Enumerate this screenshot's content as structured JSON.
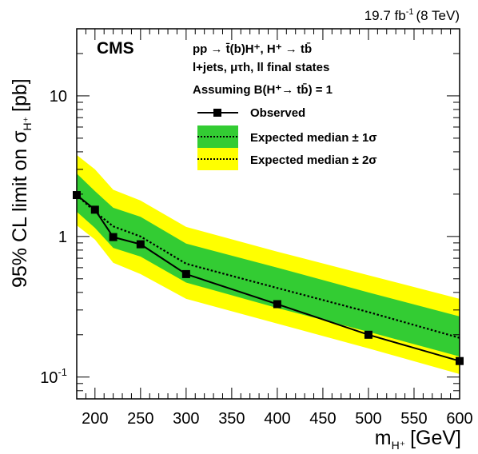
{
  "chart_data": {
    "type": "line",
    "title": "",
    "lumi_label": "19.7 fb",
    "lumi_exp": "-1",
    "lumi_energy": "(8 TeV)",
    "experiment": "CMS",
    "process_text": "pp → t̄(b)H⁺, H⁺ → tb̄",
    "final_states_text": "l+jets, μτh, ll final states",
    "assumption_text": "Assuming B(H⁺→ tb̄) = 1",
    "xlabel": "m",
    "xlabel_sub": "H⁺",
    "xlabel_unit": "[GeV]",
    "ylabel": "95% CL limit on σ",
    "ylabel_sub": "H⁺",
    "ylabel_unit": "[pb]",
    "xlim": [
      180,
      600
    ],
    "ylim": [
      0.07,
      30
    ],
    "yscale": "log",
    "x_ticks": [
      200,
      250,
      300,
      350,
      400,
      450,
      500,
      550,
      600
    ],
    "x_tick_labels": [
      "200",
      "250",
      "300",
      "350",
      "400",
      "450",
      "500",
      "550",
      "600"
    ],
    "y_ticks": [
      0.1,
      1,
      10
    ],
    "y_tick_labels": [
      {
        "base": "10",
        "exp": "-1"
      },
      {
        "base": "1",
        "exp": ""
      },
      {
        "base": "10",
        "exp": ""
      }
    ],
    "x": [
      180,
      200,
      220,
      250,
      300,
      400,
      500,
      600
    ],
    "series": [
      {
        "name": "Observed",
        "style": "solid-marker",
        "color": "#000000",
        "values": [
          1.97,
          1.55,
          0.99,
          0.88,
          0.54,
          0.33,
          0.2,
          0.13
        ]
      },
      {
        "name": "Expected median",
        "style": "dotted",
        "color": "#000000",
        "values": [
          1.97,
          1.5,
          1.18,
          1.0,
          0.64,
          0.43,
          0.29,
          0.19
        ]
      }
    ],
    "bands": [
      {
        "name": "Expected median ± 2σ",
        "color": "#ffff00",
        "low": [
          1.2,
          0.95,
          0.65,
          0.54,
          0.36,
          0.24,
          0.16,
          0.105
        ],
        "high": [
          3.8,
          3.0,
          2.15,
          1.8,
          1.17,
          0.78,
          0.53,
          0.36
        ]
      },
      {
        "name": "Expected median ± 1σ",
        "color": "#33cc33",
        "low": [
          1.5,
          1.15,
          0.83,
          0.72,
          0.47,
          0.31,
          0.21,
          0.14
        ],
        "high": [
          2.8,
          2.1,
          1.6,
          1.38,
          0.89,
          0.6,
          0.4,
          0.27
        ]
      }
    ],
    "legend": {
      "placement": "top-right",
      "entries": [
        "Observed",
        "Expected median  ± 1σ",
        "Expected median  ± 2σ"
      ]
    }
  }
}
